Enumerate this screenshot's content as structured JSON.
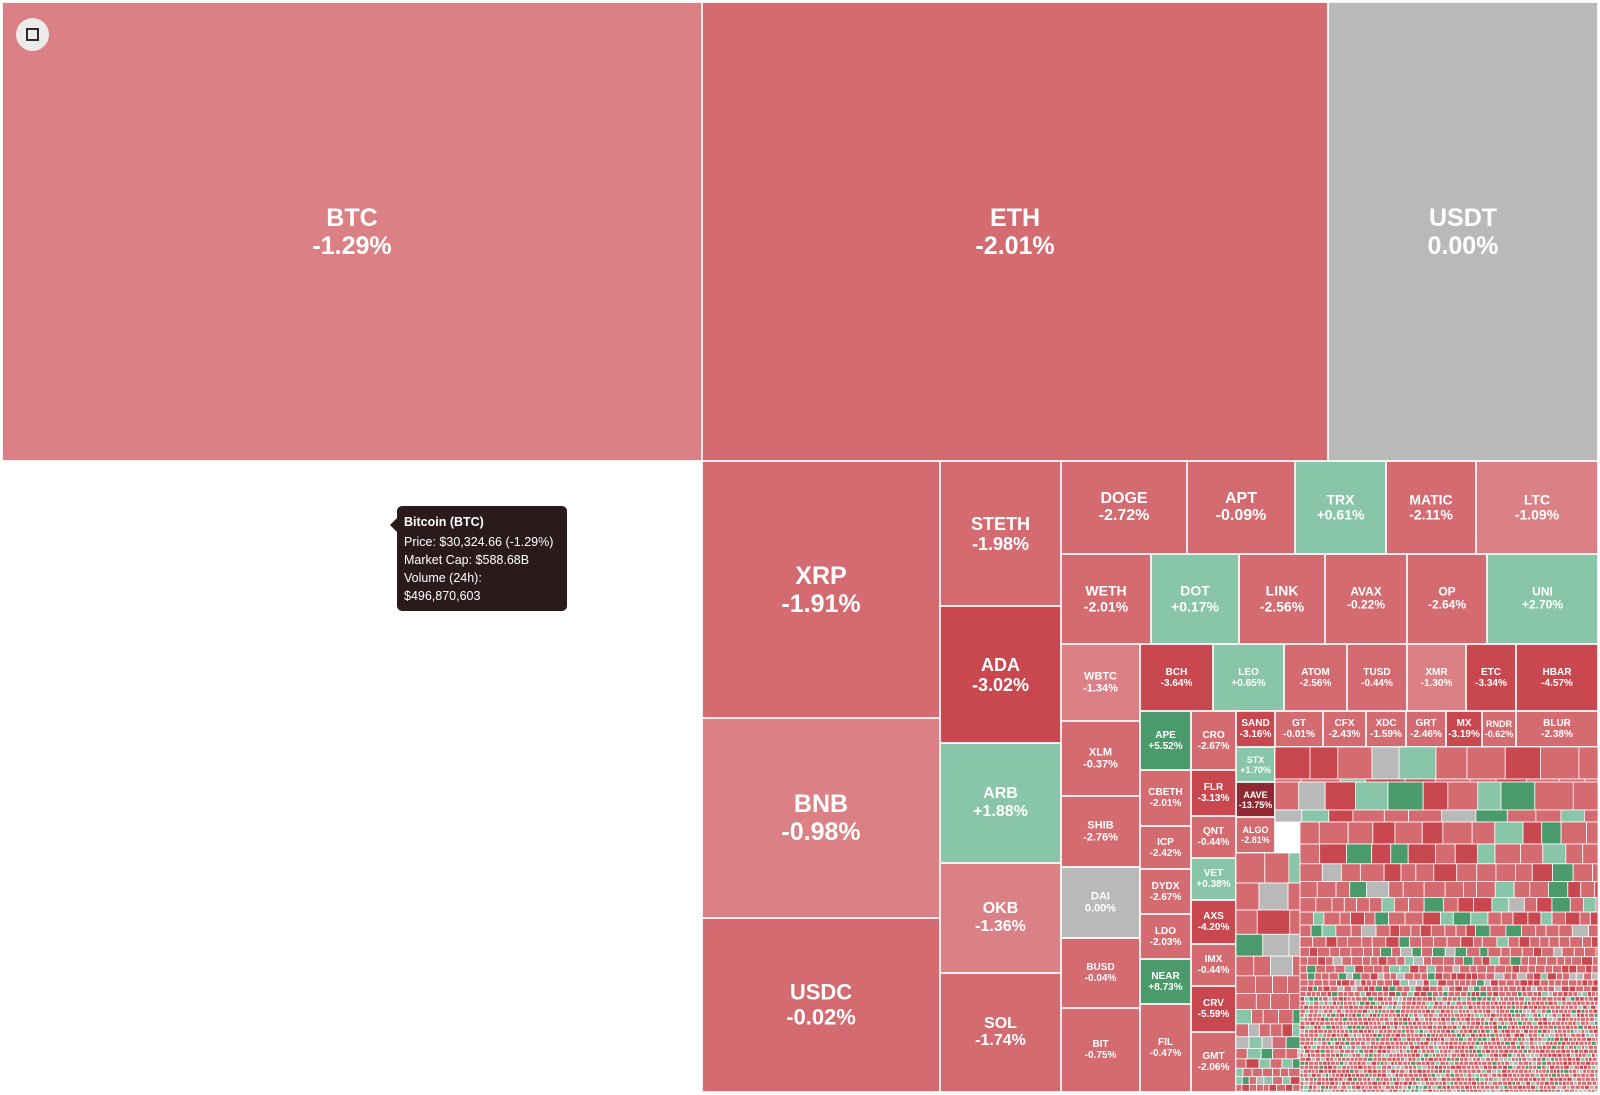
{
  "colors": {
    "strong_up": "#4a9a6c",
    "up": "#89c5a8",
    "flat": "#b9b9b9",
    "down_light": "#db8085",
    "down": "#d46b70",
    "down_strong": "#c9484f",
    "down_extreme": "#8f2a32"
  },
  "fullscreen_button": {
    "icon": "expand-icon"
  },
  "tooltip": {
    "title": "Bitcoin (BTC)",
    "price": "Price: $30,324.66 (-1.29%)",
    "market_cap": "Market Cap: $588.68B",
    "volume": "Volume (24h): $496,870,603"
  },
  "chart_data": {
    "type": "heatmap",
    "title": "",
    "value_field": "24h price change (%)",
    "legend": "none",
    "items": [
      {
        "symbol": "BTC",
        "change": "-1.29%",
        "value": -1.29
      },
      {
        "symbol": "ETH",
        "change": "-2.01%",
        "value": -2.01
      },
      {
        "symbol": "USDT",
        "change": "0.00%",
        "value": 0.0
      },
      {
        "symbol": "XRP",
        "change": "-1.91%",
        "value": -1.91
      },
      {
        "symbol": "BNB",
        "change": "-0.98%",
        "value": -0.98
      },
      {
        "symbol": "USDC",
        "change": "-0.02%",
        "value": -0.02
      },
      {
        "symbol": "STETH",
        "change": "-1.98%",
        "value": -1.98
      },
      {
        "symbol": "ADA",
        "change": "-3.02%",
        "value": -3.02
      },
      {
        "symbol": "ARB",
        "change": "+1.88%",
        "value": 1.88
      },
      {
        "symbol": "OKB",
        "change": "-1.36%",
        "value": -1.36
      },
      {
        "symbol": "SOL",
        "change": "-1.74%",
        "value": -1.74
      },
      {
        "symbol": "DOGE",
        "change": "-2.72%",
        "value": -2.72
      },
      {
        "symbol": "APT",
        "change": "-0.09%",
        "value": -0.09
      },
      {
        "symbol": "TRX",
        "change": "+0.61%",
        "value": 0.61
      },
      {
        "symbol": "MATIC",
        "change": "-2.11%",
        "value": -2.11
      },
      {
        "symbol": "LTC",
        "change": "-1.09%",
        "value": -1.09
      },
      {
        "symbol": "WETH",
        "change": "-2.01%",
        "value": -2.01
      },
      {
        "symbol": "DOT",
        "change": "+0.17%",
        "value": 0.17
      },
      {
        "symbol": "LINK",
        "change": "-2.56%",
        "value": -2.56
      },
      {
        "symbol": "AVAX",
        "change": "-0.22%",
        "value": -0.22
      },
      {
        "symbol": "OP",
        "change": "-2.64%",
        "value": -2.64
      },
      {
        "symbol": "UNI",
        "change": "+2.70%",
        "value": 2.7
      },
      {
        "symbol": "WBTC",
        "change": "-1.34%",
        "value": -1.34
      },
      {
        "symbol": "BCH",
        "change": "-3.64%",
        "value": -3.64
      },
      {
        "symbol": "LEO",
        "change": "+0.65%",
        "value": 0.65
      },
      {
        "symbol": "ATOM",
        "change": "-2.56%",
        "value": -2.56
      },
      {
        "symbol": "TUSD",
        "change": "-0.44%",
        "value": -0.44
      },
      {
        "symbol": "XMR",
        "change": "-1.30%",
        "value": -1.3
      },
      {
        "symbol": "ETC",
        "change": "-3.34%",
        "value": -3.34
      },
      {
        "symbol": "HBAR",
        "change": "-4.57%",
        "value": -4.57
      },
      {
        "symbol": "XLM",
        "change": "-0.37%",
        "value": -0.37
      },
      {
        "symbol": "APE",
        "change": "+5.52%",
        "value": 5.52
      },
      {
        "symbol": "CRO",
        "change": "-2.67%",
        "value": -2.67
      },
      {
        "symbol": "SAND",
        "change": "-3.16%",
        "value": -3.16
      },
      {
        "symbol": "GT",
        "change": "-0.01%",
        "value": -0.01
      },
      {
        "symbol": "CFX",
        "change": "-2.43%",
        "value": -2.43
      },
      {
        "symbol": "XDC",
        "change": "-1.59%",
        "value": -1.59
      },
      {
        "symbol": "GRT",
        "change": "-2.46%",
        "value": -2.46
      },
      {
        "symbol": "MX",
        "change": "-3.19%",
        "value": -3.19
      },
      {
        "symbol": "RNDR",
        "change": "-0.62%",
        "value": -0.62
      },
      {
        "symbol": "BLUR",
        "change": "-2.38%",
        "value": -2.38
      },
      {
        "symbol": "STX",
        "change": "+1.70%",
        "value": 1.7
      },
      {
        "symbol": "FLR",
        "change": "-3.13%",
        "value": -3.13
      },
      {
        "symbol": "AAVE",
        "change": "-13.75%",
        "value": -13.75
      },
      {
        "symbol": "SHIB",
        "change": "-2.76%",
        "value": -2.76
      },
      {
        "symbol": "CBETH",
        "change": "-2.01%",
        "value": -2.01
      },
      {
        "symbol": "QNT",
        "change": "-0.44%",
        "value": -0.44
      },
      {
        "symbol": "ALGO",
        "change": "-2.81%",
        "value": -2.81
      },
      {
        "symbol": "ICP",
        "change": "-2.42%",
        "value": -2.42
      },
      {
        "symbol": "VET",
        "change": "+0.38%",
        "value": 0.38
      },
      {
        "symbol": "DAI",
        "change": "0.00%",
        "value": 0.0
      },
      {
        "symbol": "DYDX",
        "change": "-2.67%",
        "value": -2.67
      },
      {
        "symbol": "AXS",
        "change": "-4.20%",
        "value": -4.2
      },
      {
        "symbol": "LDO",
        "change": "-2.03%",
        "value": -2.03
      },
      {
        "symbol": "IMX",
        "change": "-0.44%",
        "value": -0.44
      },
      {
        "symbol": "BUSD",
        "change": "-0.04%",
        "value": -0.04
      },
      {
        "symbol": "NEAR",
        "change": "+8.73%",
        "value": 8.73
      },
      {
        "symbol": "CRV",
        "change": "-5.59%",
        "value": -5.59
      },
      {
        "symbol": "BIT",
        "change": "-0.75%",
        "value": -0.75
      },
      {
        "symbol": "FIL",
        "change": "-0.47%",
        "value": -0.47
      },
      {
        "symbol": "GMT",
        "change": "-2.06%",
        "value": -2.06
      }
    ]
  }
}
